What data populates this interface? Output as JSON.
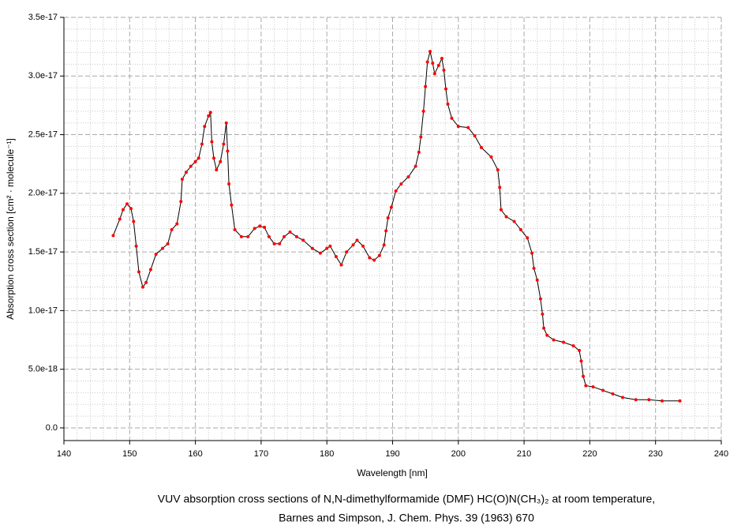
{
  "chart_data": {
    "type": "line",
    "xlabel": "Wavelength [nm]",
    "ylabel": "Absorption cross section [cm² · molecule⁻¹]",
    "caption": [
      "VUV absorption cross sections of N,N-dimethylformamide (DMF) HC(O)N(CH₃)₂ at room temperature,",
      "Barnes and Simpson, J. Chem. Phys. 39 (1963) 670"
    ],
    "xlim": [
      140,
      240
    ],
    "xticks": [
      140,
      150,
      160,
      170,
      180,
      190,
      200,
      210,
      220,
      230,
      240
    ],
    "ylim": [
      -1.08e-18,
      3.5e-17
    ],
    "yticks": [
      {
        "value": 0,
        "label": "0.0"
      },
      {
        "value": 5e-18,
        "label": "5.0e-18"
      },
      {
        "value": 1e-17,
        "label": "1.0e-17"
      },
      1.5e-17,
      {
        "value": 2e-17,
        "label": "2.0e-17"
      },
      2.5e-17,
      {
        "value": 3e-17,
        "label": "3.0e-17"
      },
      3.5e-17
    ],
    "grid": true,
    "minor_grid": true,
    "line_color": "#000000",
    "marker_color": "#ff0000",
    "x": [
      147.5,
      148.5,
      149,
      149.6,
      150.2,
      150.6,
      151,
      151.4,
      152,
      152.5,
      153.2,
      154,
      155,
      155.8,
      156.4,
      157.2,
      157.8,
      158,
      158.6,
      159.3,
      160,
      160.5,
      161,
      161.4,
      162,
      162.3,
      162.5,
      162.8,
      163.2,
      163.8,
      164.3,
      164.7,
      164.9,
      165.1,
      165.5,
      166,
      167,
      168,
      169,
      169.8,
      170.5,
      171.2,
      172,
      172.8,
      173.5,
      174.4,
      175.4,
      176.4,
      177.8,
      179,
      180,
      180.5,
      181.4,
      182.2,
      183,
      184,
      184.6,
      185.5,
      186.5,
      187.2,
      188,
      188.7,
      189,
      189.3,
      189.8,
      190.5,
      191.3,
      192.4,
      193.5,
      194,
      194.3,
      194.7,
      195,
      195.3,
      195.7,
      196.1,
      196.4,
      197,
      197.5,
      197.8,
      198.1,
      198.4,
      199,
      200,
      201.5,
      202.5,
      203.5,
      205,
      206,
      206.3,
      206.5,
      207.3,
      208.5,
      209.5,
      210.5,
      211.2,
      211.5,
      212,
      212.5,
      212.8,
      213,
      213.5,
      214.5,
      216,
      217.5,
      218.4,
      218.7,
      219,
      219.4,
      220.5,
      222,
      223.5,
      225,
      227,
      229,
      231,
      233.7
    ],
    "values": [
      1.64e-17,
      1.78e-17,
      1.86e-17,
      1.91e-17,
      1.87e-17,
      1.76e-17,
      1.55e-17,
      1.33e-17,
      1.2e-17,
      1.24e-17,
      1.35e-17,
      1.48e-17,
      1.53e-17,
      1.57e-17,
      1.69e-17,
      1.74e-17,
      1.93e-17,
      2.12e-17,
      2.18e-17,
      2.23e-17,
      2.27e-17,
      2.3e-17,
      2.42e-17,
      2.57e-17,
      2.66e-17,
      2.69e-17,
      2.44e-17,
      2.3e-17,
      2.2e-17,
      2.27e-17,
      2.42e-17,
      2.6e-17,
      2.36e-17,
      2.08e-17,
      1.9e-17,
      1.69e-17,
      1.63e-17,
      1.63e-17,
      1.7e-17,
      1.72e-17,
      1.71e-17,
      1.63e-17,
      1.57e-17,
      1.57e-17,
      1.63e-17,
      1.67e-17,
      1.63e-17,
      1.6e-17,
      1.53e-17,
      1.49e-17,
      1.53e-17,
      1.55e-17,
      1.46e-17,
      1.39e-17,
      1.5e-17,
      1.56e-17,
      1.6e-17,
      1.55e-17,
      1.45e-17,
      1.43e-17,
      1.47e-17,
      1.56e-17,
      1.68e-17,
      1.79e-17,
      1.88e-17,
      2.02e-17,
      2.08e-17,
      2.14e-17,
      2.23e-17,
      2.35e-17,
      2.48e-17,
      2.7e-17,
      2.91e-17,
      3.12e-17,
      3.21e-17,
      3.11e-17,
      3.02e-17,
      3.09e-17,
      3.15e-17,
      3.05e-17,
      2.89e-17,
      2.76e-17,
      2.64e-17,
      2.57e-17,
      2.56e-17,
      2.49e-17,
      2.39e-17,
      2.31e-17,
      2.2e-17,
      2.05e-17,
      1.86e-17,
      1.8e-17,
      1.76e-17,
      1.69e-17,
      1.62e-17,
      1.49e-17,
      1.36e-17,
      1.26e-17,
      1.1e-17,
      9.7e-18,
      8.5e-18,
      7.9e-18,
      7.5e-18,
      7.3e-18,
      7e-18,
      6.6e-18,
      5.7e-18,
      4.4e-18,
      3.6e-18,
      3.5e-18,
      3.2e-18,
      2.9e-18,
      2.6e-18,
      2.4e-18,
      2.4e-18,
      2.3e-18,
      2.3e-18
    ]
  }
}
